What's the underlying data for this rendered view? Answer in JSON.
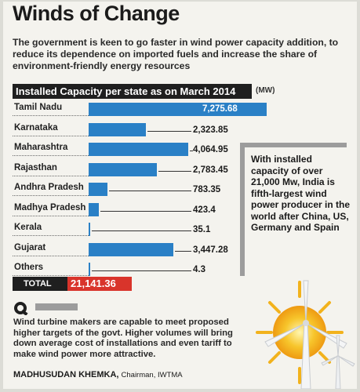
{
  "title": "Winds of Change",
  "intro": "The government is keen to go faster in wind power capacity addition, to reduce its dependence on imported fuels and increase the share of environment-friendly energy resources",
  "chart_header": "Installed Capacity per state as on March 2014",
  "unit": "(MW)",
  "total_label": "TOTAL",
  "total_value": "21,141.36",
  "side_fact": "With installed capacity of over 21,000 Mw, India is fifth-largest wind power producer in the world after China, US, Germany and Spain",
  "quote": "Wind turbine makers are capable to meet proposed higher targets of the govt. Higher volumes will bring down average cost of installations and even tariff to make wind power more attractive.",
  "quote_author": "MADHUSUDAN KHEMKA,",
  "quote_role": "Chairman, IWTMA",
  "colors": {
    "bar": "#2a80c6",
    "total": "#d9342b",
    "header": "#1f1f1f"
  },
  "chart_data": {
    "type": "bar",
    "orientation": "horizontal",
    "title": "Installed Capacity per state as on March 2014",
    "unit": "(MW)",
    "categories": [
      "Tamil Nadu",
      "Karnataka",
      "Maharashtra",
      "Rajasthan",
      "Andhra Pradesh",
      "Madhya Pradesh",
      "Kerala",
      "Gujarat",
      "Others"
    ],
    "values": [
      7275.68,
      2323.85,
      4064.95,
      2783.45,
      783.35,
      423.4,
      35.1,
      3447.28,
      4.3
    ],
    "labels": [
      "7,275.68",
      "2,323.85",
      "4,064.95",
      "2,783.45",
      "783.35",
      "423.4",
      "35.1",
      "3,447.28",
      "4.3"
    ],
    "xlim": [
      0,
      7275.68
    ],
    "grid": false,
    "legend": "none"
  }
}
